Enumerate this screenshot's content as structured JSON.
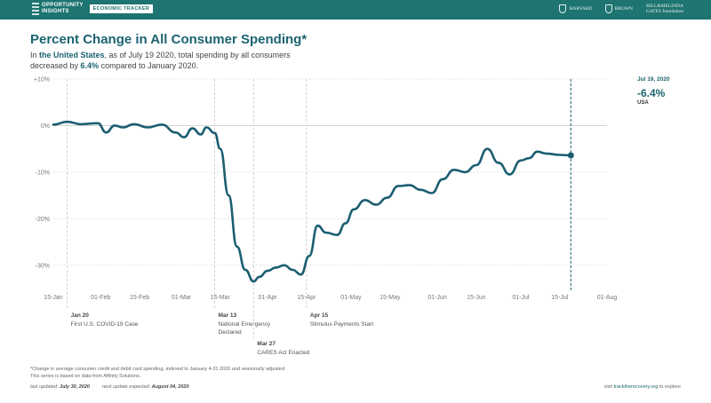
{
  "header": {
    "brand_line1": "OPPORTUNITY",
    "brand_line2": "INSIGHTS",
    "brand_tag": "ECONOMIC TRACKER",
    "partners": [
      "HARVARD",
      "BROWN",
      "BILL&MELINDA GATES foundation"
    ]
  },
  "title": "Percent Change in All Consumer Spending*",
  "subtitle": {
    "pre": "In ",
    "region": "the United States",
    "mid": ", as of July 19 2020, total spending by all consumers decreased by ",
    "value": "6.4%",
    "post": " compared to January 2020."
  },
  "side_panel": {
    "date": "Jul 19, 2020",
    "value": "-6.4%",
    "region": "USA"
  },
  "chart_data": {
    "type": "line",
    "title": "Percent Change in All Consumer Spending*",
    "xlabel": "",
    "ylabel": "",
    "x_tick_labels": [
      "15-Jan",
      "01-Feb",
      "15-Feb",
      "01-Mar",
      "15-Mar",
      "01-Apr",
      "15-Apr",
      "01-May",
      "15-May",
      "01-Jun",
      "15-Jun",
      "01-Jul",
      "15-Jul",
      "01-Aug"
    ],
    "y_tick_labels": [
      "+10%",
      "0%",
      "-10%",
      "-20%",
      "-30%"
    ],
    "ylim": [
      -35,
      10
    ],
    "xlim": [
      "2020-01-15",
      "2020-08-01"
    ],
    "grid": true,
    "series": [
      {
        "color": "#1b5e72",
        "x": [
          "2020-01-15",
          "2020-01-20",
          "2020-01-25",
          "2020-01-31",
          "2020-02-03",
          "2020-02-06",
          "2020-02-09",
          "2020-02-13",
          "2020-02-18",
          "2020-02-23",
          "2020-02-28",
          "2020-03-02",
          "2020-03-05",
          "2020-03-08",
          "2020-03-10",
          "2020-03-13",
          "2020-03-15",
          "2020-03-18",
          "2020-03-21",
          "2020-03-24",
          "2020-03-27",
          "2020-03-29",
          "2020-04-01",
          "2020-04-04",
          "2020-04-07",
          "2020-04-10",
          "2020-04-13",
          "2020-04-16",
          "2020-04-19",
          "2020-04-22",
          "2020-04-26",
          "2020-04-29",
          "2020-05-02",
          "2020-05-06",
          "2020-05-10",
          "2020-05-14",
          "2020-05-18",
          "2020-05-22",
          "2020-05-26",
          "2020-05-30",
          "2020-06-03",
          "2020-06-07",
          "2020-06-11",
          "2020-06-15",
          "2020-06-19",
          "2020-06-23",
          "2020-06-27",
          "2020-07-01",
          "2020-07-04",
          "2020-07-07",
          "2020-07-10",
          "2020-07-15",
          "2020-07-19"
        ],
        "y": [
          0.2,
          0.8,
          0.3,
          0.5,
          -1.5,
          0.0,
          -0.4,
          0.3,
          -0.4,
          0.2,
          -1.5,
          -2.5,
          -0.6,
          -1.9,
          -0.4,
          -1.6,
          -5.0,
          -15.0,
          -26.0,
          -31.0,
          -33.5,
          -32.5,
          -31.2,
          -30.5,
          -30.0,
          -31.0,
          -32.0,
          -28.0,
          -21.5,
          -23.0,
          -23.5,
          -21.0,
          -18.0,
          -16.0,
          -17.0,
          -15.5,
          -13.0,
          -12.8,
          -13.8,
          -14.5,
          -11.5,
          -9.5,
          -10.0,
          -8.5,
          -5.0,
          -8.0,
          -10.5,
          -7.5,
          -7.0,
          -5.6,
          -6.0,
          -6.3,
          -6.4
        ]
      }
    ],
    "annotations": [
      {
        "x": "2020-01-20",
        "date": "Jan 20",
        "text": "First U.S. COVID-19 Case"
      },
      {
        "x": "2020-03-13",
        "date": "Mar 13",
        "text": "National Emergency Declared"
      },
      {
        "x": "2020-03-27",
        "date": "Mar 27",
        "text": "CARES Act Enacted"
      },
      {
        "x": "2020-04-15",
        "date": "Apr 15",
        "text": "Stimulus Payments Start"
      }
    ]
  },
  "footnote": {
    "line1": "*Change in average consumer credit and debit card spending, indexed to January 4-31 2020 and seasonally adjusted.",
    "line2": "This series is based on data from Affinity Solutions."
  },
  "updates": {
    "last_label": "last updated:",
    "last_value": "July 30, 2020",
    "next_label": "next update expected:",
    "next_value": "August 04, 2020"
  },
  "visit": {
    "pre": "visit ",
    "link": "tracktherecovery.org",
    "post": " to explore"
  }
}
